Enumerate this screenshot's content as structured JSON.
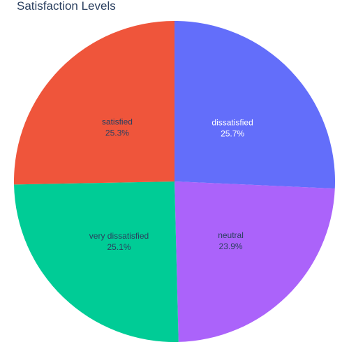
{
  "chart_data": {
    "type": "pie",
    "title": "Satisfaction Levels",
    "slices": [
      {
        "label": "dissatisfied",
        "value": 25.7,
        "percent_text": "25.7%",
        "color": "#636efa",
        "text_color": "#ffffff"
      },
      {
        "label": "neutral",
        "value": 23.9,
        "percent_text": "23.9%",
        "color": "#ab63fa",
        "text_color": "#2a3f5f"
      },
      {
        "label": "very dissatisfied",
        "value": 25.1,
        "percent_text": "25.1%",
        "color": "#00cc96",
        "text_color": "#2a3f5f"
      },
      {
        "label": "satisfied",
        "value": 25.3,
        "percent_text": "25.3%",
        "color": "#ef553b",
        "text_color": "#2a3f5f"
      }
    ],
    "direction": "clockwise",
    "start_angle": "12 o'clock",
    "legend": "none"
  }
}
